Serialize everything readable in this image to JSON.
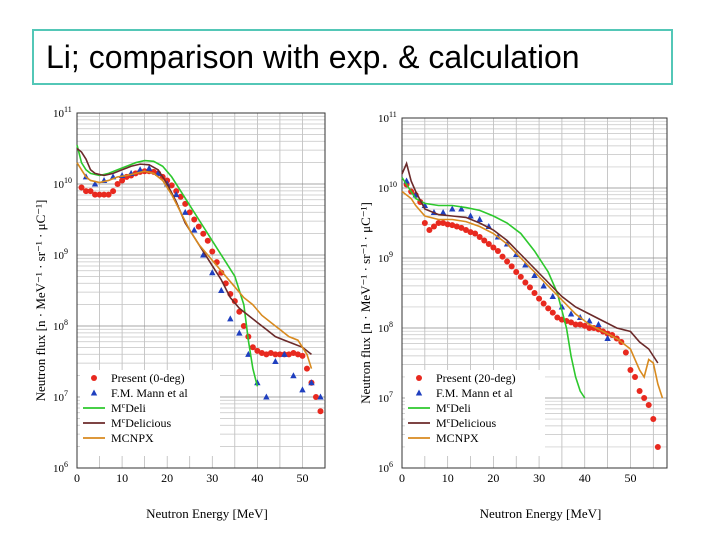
{
  "slide": {
    "title": "Li; comparison with exp. &  calculation"
  },
  "chart_data": [
    {
      "type": "scatter",
      "xlabel": "Neutron Energy [MeV]",
      "ylabel": "Neutron flux [n · MeV⁻¹ · sr⁻¹ · μC⁻¹]",
      "xlim": [
        0,
        55
      ],
      "ylim_log10": [
        6,
        11
      ],
      "yscale": "log",
      "grid": true,
      "legend_position": "bottom-left",
      "x_ticks": [
        "0",
        "10",
        "20",
        "30",
        "40",
        "50"
      ],
      "y_ticks": [
        "10^6",
        "10^7",
        "10^8",
        "10^9",
        "10^10",
        "10^11"
      ],
      "series": [
        {
          "name": "Present (0-deg)",
          "style": "red-dots",
          "color": "#e8291f",
          "x": [
            1,
            2,
            3,
            4,
            5,
            6,
            7,
            8,
            9,
            10,
            11,
            12,
            13,
            14,
            15,
            16,
            17,
            18,
            19,
            20,
            21,
            22,
            23,
            24,
            25,
            26,
            27,
            28,
            29,
            30,
            31,
            32,
            33,
            34,
            35,
            36,
            37,
            38,
            39,
            40,
            41,
            42,
            43,
            44,
            45,
            46,
            47,
            48,
            49,
            50,
            51,
            52,
            53,
            54
          ],
          "y": [
            9.95,
            9.9,
            9.9,
            9.85,
            9.85,
            9.85,
            9.85,
            9.9,
            10.0,
            10.05,
            10.1,
            10.12,
            10.15,
            10.17,
            10.18,
            10.18,
            10.17,
            10.15,
            10.1,
            10.05,
            9.98,
            9.9,
            9.82,
            9.72,
            9.6,
            9.5,
            9.4,
            9.3,
            9.2,
            9.05,
            8.9,
            8.75,
            8.6,
            8.45,
            8.35,
            8.2,
            8.0,
            7.85,
            7.7,
            7.65,
            7.62,
            7.6,
            7.62,
            7.6,
            7.6,
            7.6,
            7.6,
            7.62,
            7.6,
            7.58,
            7.4,
            7.2,
            7.0,
            6.8
          ]
        },
        {
          "name": "F.M. Mann et al",
          "style": "blue-triangles",
          "color": "#1f3fbf",
          "x": [
            2,
            4,
            6,
            8,
            10,
            12,
            14,
            16,
            18,
            20,
            22,
            24,
            26,
            28,
            30,
            32,
            34,
            36,
            38,
            40,
            42,
            44,
            46,
            48,
            50,
            52,
            54
          ],
          "y": [
            10.1,
            10.0,
            10.05,
            10.1,
            10.12,
            10.15,
            10.2,
            10.22,
            10.15,
            10.0,
            9.85,
            9.6,
            9.35,
            9.0,
            8.75,
            8.5,
            8.1,
            7.9,
            7.6,
            7.2,
            7.0,
            7.5,
            7.6,
            7.3,
            7.1,
            7.2,
            7.0
          ]
        },
        {
          "name": "M^cDeli",
          "style": "line",
          "color": "#2dc82d",
          "x": [
            0,
            1,
            2,
            3,
            5,
            7,
            9,
            11,
            13,
            15,
            17,
            19,
            21,
            23,
            25,
            27,
            29,
            31,
            33,
            35,
            37,
            38,
            39,
            40
          ],
          "y": [
            10.55,
            10.3,
            10.2,
            10.15,
            10.12,
            10.15,
            10.2,
            10.25,
            10.3,
            10.33,
            10.32,
            10.25,
            10.1,
            9.9,
            9.7,
            9.5,
            9.3,
            9.1,
            8.9,
            8.7,
            8.3,
            7.8,
            7.4,
            7.15
          ]
        },
        {
          "name": "M^cDelicious",
          "style": "line",
          "color": "#6b2a2a",
          "x": [
            0,
            1,
            2,
            3,
            4,
            6,
            8,
            10,
            12,
            14,
            16,
            18,
            20,
            22,
            24,
            26,
            28,
            30,
            32,
            34,
            36,
            38,
            40,
            42,
            44,
            46,
            48,
            50,
            52
          ],
          "y": [
            10.5,
            10.45,
            10.35,
            10.2,
            10.15,
            10.12,
            10.15,
            10.2,
            10.25,
            10.28,
            10.27,
            10.2,
            10.0,
            9.75,
            9.45,
            9.25,
            9.05,
            8.85,
            8.65,
            8.4,
            8.25,
            8.15,
            8.05,
            7.95,
            7.85,
            7.8,
            7.75,
            7.7,
            7.6
          ]
        },
        {
          "name": "MCNPX",
          "style": "line",
          "color": "#d88a1f",
          "x": [
            0,
            1,
            2,
            3,
            5,
            7,
            9,
            11,
            13,
            15,
            17,
            19,
            21,
            23,
            25,
            27,
            29,
            31,
            33,
            35,
            37,
            39,
            41,
            43,
            45,
            47,
            49,
            51,
            52
          ],
          "y": [
            10.3,
            10.2,
            10.1,
            10.05,
            10.02,
            10.05,
            10.1,
            10.12,
            10.15,
            10.18,
            10.15,
            10.05,
            9.85,
            9.6,
            9.35,
            9.15,
            9.0,
            8.85,
            8.7,
            8.55,
            8.4,
            8.3,
            8.15,
            8.05,
            7.95,
            7.85,
            7.8,
            7.6,
            7.4
          ]
        }
      ]
    },
    {
      "type": "scatter",
      "xlabel": "Neutron Energy [MeV]",
      "ylabel": "Neutron flux [n · MeV⁻¹ · sr⁻¹ · μC⁻¹]",
      "xlim": [
        0,
        58
      ],
      "ylim_log10": [
        6,
        11
      ],
      "yscale": "log",
      "grid": true,
      "legend_position": "bottom-left",
      "x_ticks": [
        "0",
        "10",
        "20",
        "30",
        "40",
        "50"
      ],
      "y_ticks": [
        "10^6",
        "10^7",
        "10^8",
        "10^9",
        "10^10",
        "10^11"
      ],
      "series": [
        {
          "name": "Present (20-deg)",
          "style": "red-dots",
          "color": "#e8291f",
          "x": [
            1,
            2,
            3,
            4,
            5,
            6,
            7,
            8,
            9,
            10,
            11,
            12,
            13,
            14,
            15,
            16,
            17,
            18,
            19,
            20,
            21,
            22,
            23,
            24,
            25,
            26,
            27,
            28,
            29,
            30,
            31,
            32,
            33,
            34,
            35,
            36,
            37,
            38,
            39,
            40,
            41,
            42,
            43,
            44,
            45,
            46,
            47,
            48,
            49,
            50,
            51,
            52,
            53,
            54,
            55,
            56
          ],
          "y": [
            10.05,
            9.95,
            9.9,
            9.8,
            9.5,
            9.4,
            9.45,
            9.5,
            9.5,
            9.48,
            9.47,
            9.45,
            9.43,
            9.4,
            9.37,
            9.35,
            9.3,
            9.25,
            9.2,
            9.15,
            9.1,
            9.02,
            8.95,
            8.88,
            8.8,
            8.73,
            8.65,
            8.58,
            8.5,
            8.42,
            8.35,
            8.28,
            8.22,
            8.15,
            8.12,
            8.1,
            8.08,
            8.05,
            8.05,
            8.03,
            8.0,
            8.0,
            7.98,
            7.95,
            7.92,
            7.9,
            7.85,
            7.8,
            7.65,
            7.4,
            7.3,
            7.1,
            7.0,
            6.9,
            6.7,
            6.3
          ]
        },
        {
          "name": "F.M. Mann et al",
          "style": "blue-triangles",
          "color": "#1f3fbf",
          "x": [
            1,
            3,
            5,
            7,
            9,
            11,
            13,
            15,
            17,
            19,
            21,
            23,
            25,
            27,
            29,
            31,
            33,
            35,
            37,
            39,
            41,
            43,
            45
          ],
          "y": [
            10.1,
            9.9,
            9.75,
            9.65,
            9.65,
            9.7,
            9.7,
            9.6,
            9.55,
            9.45,
            9.3,
            9.2,
            9.05,
            8.9,
            8.75,
            8.6,
            8.45,
            8.3,
            8.2,
            8.15,
            8.1,
            8.05,
            7.85
          ]
        },
        {
          "name": "M^cDeli",
          "style": "line",
          "color": "#2dc82d",
          "x": [
            0,
            1,
            2,
            3,
            5,
            8,
            11,
            14,
            17,
            20,
            23,
            26,
            29,
            32,
            34,
            36,
            37,
            38,
            39,
            40
          ],
          "y": [
            10.15,
            10.05,
            9.95,
            9.85,
            9.78,
            9.75,
            9.75,
            9.72,
            9.68,
            9.6,
            9.5,
            9.35,
            9.1,
            8.8,
            8.5,
            8.0,
            7.6,
            7.3,
            7.1,
            7.0
          ]
        },
        {
          "name": "M^cDelicious",
          "style": "line",
          "color": "#6b2a2a",
          "x": [
            0,
            1,
            2,
            3,
            5,
            8,
            11,
            14,
            17,
            20,
            23,
            26,
            29,
            32,
            35,
            38,
            41,
            44,
            47,
            50,
            52,
            54,
            55,
            56
          ],
          "y": [
            10.2,
            10.35,
            10.1,
            9.95,
            9.7,
            9.62,
            9.6,
            9.58,
            9.5,
            9.4,
            9.25,
            9.05,
            8.85,
            8.65,
            8.45,
            8.3,
            8.2,
            8.1,
            8.0,
            7.95,
            7.8,
            7.7,
            7.6,
            7.5
          ]
        },
        {
          "name": "MCNPX",
          "style": "line",
          "color": "#d88a1f",
          "x": [
            0,
            1,
            2,
            3,
            5,
            8,
            11,
            14,
            17,
            20,
            23,
            26,
            29,
            32,
            35,
            38,
            41,
            44,
            47,
            50,
            52,
            53,
            54,
            55,
            56,
            57
          ],
          "y": [
            9.95,
            9.9,
            9.85,
            9.75,
            9.6,
            9.55,
            9.55,
            9.52,
            9.45,
            9.35,
            9.2,
            9.0,
            8.8,
            8.6,
            8.4,
            8.2,
            8.05,
            7.95,
            7.85,
            7.7,
            7.4,
            7.3,
            7.55,
            7.5,
            7.2,
            7.0
          ]
        }
      ]
    }
  ]
}
